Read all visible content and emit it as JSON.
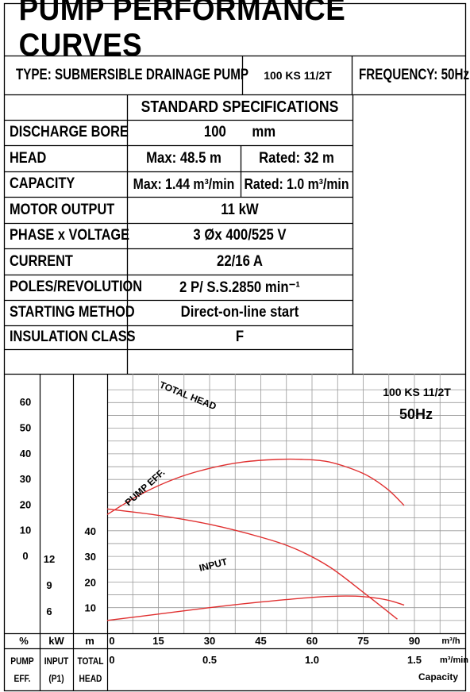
{
  "header": {
    "title": "PUMP PERFORMANCE CURVES",
    "type": "TYPE: SUBMERSIBLE  DRAINAGE  PUMP",
    "model": "100 KS 11/2T",
    "frequency": "FREQUENCY: 50Hz"
  },
  "specs": {
    "heading": "STANDARD SPECIFICATIONS",
    "rows": [
      {
        "label": "DISCHARGE BORE",
        "value": "100       mm"
      },
      {
        "label": "HEAD",
        "value": "Max: 48.5 m",
        "value2": "Rated: 32 m"
      },
      {
        "label": "CAPACITY",
        "value": "Max: 1.44 m³/min",
        "value2": "Rated: 1.0 m³/min"
      },
      {
        "label": "MOTOR OUTPUT",
        "value": "11  kW"
      },
      {
        "label": "PHASE x VOLTAGE",
        "value": "3 Øx 400/525 V"
      },
      {
        "label": "CURRENT",
        "value": "22/16 A"
      },
      {
        "label": "POLES/REVOLUTION",
        "value": "2 P/ S.S.2850 min⁻¹"
      },
      {
        "label": "STARTING METHOD",
        "value": "Direct-on-line start"
      },
      {
        "label": "INSULATION CLASS",
        "value": "F"
      }
    ]
  },
  "chart_data": {
    "type": "line",
    "model_label": "100 KS 11/2T",
    "freq_label": "50Hz",
    "x": {
      "label": "m³/h",
      "ticks": [
        0,
        15,
        30,
        45,
        60,
        75,
        90
      ],
      "range": [
        0,
        90
      ]
    },
    "x2": {
      "label": "m³/min",
      "ticks": [
        "0",
        "0.5",
        "1.0",
        "1.5"
      ],
      "values": [
        0,
        0.5,
        1.0,
        1.5
      ],
      "title": "Capacity"
    },
    "axes": [
      {
        "unit": "%",
        "name": "PUMP EFF.",
        "ticks": [
          0,
          10,
          20,
          30,
          40,
          50,
          60
        ]
      },
      {
        "unit": "kW",
        "name": "INPUT (P1)",
        "ticks": [
          6,
          9,
          12
        ]
      },
      {
        "unit": "m",
        "name": "TOTAL HEAD",
        "ticks": [
          10,
          20,
          30,
          40
        ]
      }
    ],
    "series": [
      {
        "name": "TOTAL HEAD",
        "axis": "m",
        "color": "#e03030",
        "points": [
          [
            0,
            48.5
          ],
          [
            15,
            46
          ],
          [
            30,
            42.5
          ],
          [
            45,
            37.5
          ],
          [
            55,
            33
          ],
          [
            65,
            26
          ],
          [
            75,
            16
          ],
          [
            85,
            5.5
          ]
        ]
      },
      {
        "name": "PUMP EFF.",
        "axis": "%",
        "color": "#e03030",
        "points": [
          [
            0,
            16
          ],
          [
            10,
            24
          ],
          [
            20,
            30
          ],
          [
            30,
            34
          ],
          [
            40,
            36.5
          ],
          [
            50,
            37.5
          ],
          [
            57,
            37.5
          ],
          [
            65,
            36.5
          ],
          [
            75,
            32
          ],
          [
            82,
            26
          ],
          [
            87,
            19.5
          ]
        ]
      },
      {
        "name": "INPUT",
        "axis": "m",
        "color": "#e03030",
        "points": [
          [
            0,
            5
          ],
          [
            15,
            7.5
          ],
          [
            30,
            10
          ],
          [
            45,
            12.2
          ],
          [
            60,
            14
          ],
          [
            68,
            14.5
          ],
          [
            75,
            14.3
          ],
          [
            82,
            13
          ],
          [
            87,
            11
          ]
        ]
      }
    ]
  }
}
